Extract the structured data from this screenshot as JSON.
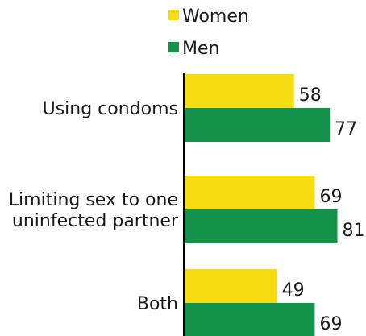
{
  "chart_data": {
    "type": "bar",
    "orientation": "horizontal",
    "categories": [
      [
        "Using condoms"
      ],
      [
        "Limiting sex to one",
        "uninfected partner"
      ],
      [
        "Both"
      ]
    ],
    "series": [
      {
        "name": "Women",
        "color": "#f7dc12",
        "values": [
          58,
          69,
          49
        ]
      },
      {
        "name": "Men",
        "color": "#14924a",
        "values": [
          77,
          81,
          69
        ]
      }
    ],
    "xlim": [
      0,
      100
    ],
    "grid": false,
    "legend_placement": "top",
    "data_labels": true
  }
}
